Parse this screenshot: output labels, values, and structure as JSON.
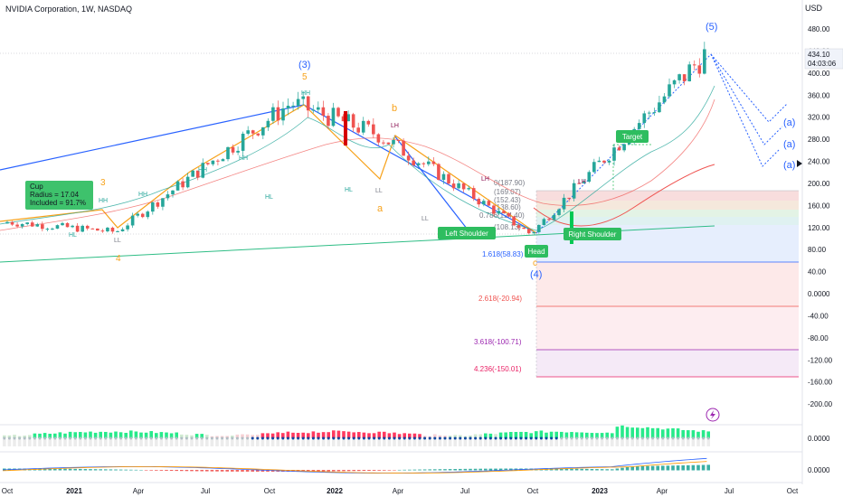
{
  "header": {
    "title": "NVIDIA Corporation, 1W, NASDAQ",
    "currency": "USD"
  },
  "price_tag": {
    "price": "434.10",
    "countdown": "04:03:06"
  },
  "chart_data": {
    "type": "candlestick",
    "title": "NVIDIA Corporation, 1W, NASDAQ",
    "price_axis": {
      "ticks": [
        "480.00",
        "440.00",
        "400.00",
        "360.00",
        "320.00",
        "280.00",
        "240.00",
        "200.00",
        "160.00",
        "120.00",
        "80.00",
        "40.00",
        "0.0000",
        "-40.00",
        "-80.00",
        "-120.00",
        "-160.00",
        "-200.00"
      ],
      "tick_values": [
        480,
        440,
        400,
        360,
        320,
        280,
        240,
        200,
        160,
        120,
        80,
        40,
        0,
        -40,
        -80,
        -120,
        -160,
        -200
      ],
      "range": [
        -220,
        540
      ]
    },
    "time_axis": {
      "labels": [
        "Oct",
        "2021",
        "Apr",
        "Jul",
        "Oct",
        "2022",
        "Apr",
        "Jul",
        "Oct",
        "2023",
        "Apr",
        "Jul",
        "Oct"
      ],
      "bold": [
        "2021",
        "2022",
        "2023"
      ]
    },
    "key_points": [
      {
        "date": "2020-10",
        "price": 130
      },
      {
        "date": "2021-03",
        "price": 112
      },
      {
        "date": "2021-11",
        "price": 346
      },
      {
        "date": "2022-03",
        "price": 289
      },
      {
        "date": "2022-10",
        "price": 108
      },
      {
        "date": "2023-06",
        "price": 434
      }
    ],
    "annotations": {
      "elliott": [
        {
          "text": "(3)",
          "color": "#2962ff"
        },
        {
          "text": "5",
          "color": "#f7a21b"
        },
        {
          "text": "b",
          "color": "#f7a21b"
        },
        {
          "text": "3",
          "color": "#f7a21b"
        },
        {
          "text": "a",
          "color": "#f7a21b"
        },
        {
          "text": "4",
          "color": "#f7a21b"
        },
        {
          "text": "c",
          "color": "#f7a21b"
        },
        {
          "text": "(4)",
          "color": "#2962ff"
        },
        {
          "text": "(5)",
          "color": "#2962ff"
        },
        {
          "text": "(a)",
          "color": "#2962ff"
        },
        {
          "text": "(a)",
          "color": "#2962ff"
        },
        {
          "text": "(a)",
          "color": "#2962ff"
        }
      ],
      "swing_labels": [
        "HH",
        "HH",
        "HH",
        "HH",
        "HH",
        "HL",
        "HL",
        "LL",
        "HL",
        "LH",
        "LL",
        "LL",
        "LH",
        "LH"
      ],
      "pattern_labels": {
        "left_shoulder": "Left Shoulder",
        "head": "Head",
        "right_shoulder": "Right Shoulder",
        "target": "Target"
      },
      "cup_box": [
        "Cup",
        "Radius = 17.04",
        "Included = 91.7%"
      ],
      "fib_levels": [
        {
          "label": "0(187.90)",
          "price": 187.9
        },
        {
          "label": "(169.07)",
          "price": 169.07
        },
        {
          "label": "(152.43)",
          "price": 152.43
        },
        {
          "label": "(138.60)",
          "price": 138.6
        },
        {
          "label": "0.786(124.40)",
          "price": 124.4
        },
        {
          "label": "(108.13)",
          "price": 108.13
        },
        {
          "label": "1.618(58.83)",
          "price": 58.83
        },
        {
          "label": "2.618(-20.94)",
          "price": -20.94
        },
        {
          "label": "3.618(-100.71)",
          "price": -100.71
        },
        {
          "label": "4.236(-150.01)",
          "price": -150.01
        }
      ]
    },
    "indicators": [
      {
        "name": "squeeze-momentum",
        "value_label": "0.0000"
      },
      {
        "name": "macd",
        "value_label": "0.0000"
      }
    ]
  },
  "colors": {
    "up": "#26a69a",
    "down": "#ef5350",
    "blue": "#2962ff",
    "orange": "#f7a21b",
    "green_box": "#2ebd5f",
    "axis_text": "#131722",
    "grid": "#f0f3fa"
  }
}
